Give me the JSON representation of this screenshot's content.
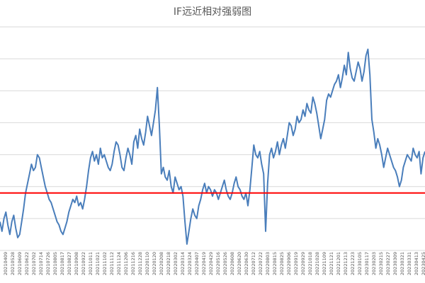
{
  "chart_data": {
    "type": "line",
    "title": "IF远近相对强弱图",
    "xlabel": "",
    "ylabel": "",
    "ylim": [
      0,
      7
    ],
    "grid": true,
    "legend": "none",
    "colors": {
      "series": "#4a7ebb",
      "reference": "#ff0000",
      "grid": "#d9d9d9",
      "title": "#595959"
    },
    "reference_line": {
      "value": 1.8
    },
    "x_tick_labels": [
      "20210409",
      "20210528",
      "20210609",
      "20210622",
      "20210702",
      "20210714",
      "20210726",
      "20210805",
      "20210817",
      "20210827",
      "20210908",
      "20210922",
      "20211011",
      "20211021",
      "20211102",
      "20211112",
      "20211124",
      "20211206",
      "20211216",
      "20211228",
      "20220110",
      "20220120",
      "20220208",
      "20220218",
      "20220302",
      "20220314",
      "20220324",
      "20220407",
      "20220419",
      "20220429",
      "20220516",
      "20220526",
      "20220608",
      "20220620",
      "20220630",
      "20220712",
      "20220722",
      "20220803",
      "20220815",
      "20220825",
      "20220906",
      "20220919",
      "20220929",
      "20221018",
      "20221028",
      "20221109",
      "20221121",
      "20221201",
      "20221213",
      "20221223",
      "20230105",
      "20230117",
      "20230203",
      "20230215",
      "20230227",
      "20230309",
      "20230321",
      "20230331",
      "20230413",
      "20230425"
    ],
    "series": [
      {
        "values": [
          0.9,
          0.6,
          1.0,
          1.2,
          0.8,
          0.5,
          0.9,
          1.1,
          0.7,
          0.4,
          0.5,
          0.9,
          1.3,
          1.8,
          2.1,
          2.4,
          2.7,
          2.5,
          2.6,
          3.0,
          2.9,
          2.6,
          2.3,
          2.0,
          1.8,
          1.6,
          1.5,
          1.3,
          1.1,
          0.9,
          0.8,
          0.6,
          0.5,
          0.7,
          0.9,
          1.2,
          1.4,
          1.6,
          1.5,
          1.7,
          1.4,
          1.5,
          1.3,
          1.6,
          2.0,
          2.5,
          2.9,
          3.1,
          2.8,
          3.0,
          2.7,
          3.2,
          2.9,
          3.0,
          2.8,
          2.6,
          2.5,
          2.7,
          3.1,
          3.4,
          3.3,
          3.0,
          2.6,
          2.5,
          2.9,
          3.2,
          3.0,
          2.7,
          3.4,
          3.6,
          3.2,
          3.8,
          3.5,
          3.3,
          3.7,
          4.2,
          3.9,
          3.6,
          4.0,
          4.4,
          5.1,
          3.9,
          2.4,
          2.6,
          2.3,
          2.2,
          2.5,
          2.0,
          1.8,
          2.3,
          2.1,
          1.9,
          2.0,
          1.7,
          0.9,
          0.2,
          0.6,
          1.0,
          1.3,
          1.1,
          1.0,
          1.4,
          1.6,
          1.9,
          2.1,
          1.8,
          2.0,
          1.9,
          1.7,
          1.9,
          1.8,
          1.6,
          1.8,
          2.0,
          2.2,
          1.9,
          1.7,
          1.6,
          1.8,
          2.1,
          2.3,
          2.0,
          1.9,
          1.7,
          1.6,
          1.8,
          1.4,
          1.9,
          2.6,
          3.3,
          3.0,
          2.9,
          3.1,
          2.7,
          2.4,
          0.6,
          2.1,
          3.0,
          3.2,
          2.9,
          3.1,
          3.4,
          3.0,
          3.3,
          3.5,
          3.2,
          3.6,
          4.0,
          3.9,
          3.6,
          3.8,
          4.2,
          4.0,
          4.1,
          4.4,
          4.2,
          4.6,
          4.4,
          4.3,
          4.8,
          4.6,
          4.3,
          3.9,
          3.5,
          3.8,
          4.1,
          4.7,
          4.9,
          4.8,
          5.0,
          5.2,
          5.3,
          5.5,
          5.1,
          5.4,
          5.8,
          5.5,
          6.2,
          5.7,
          5.4,
          5.3,
          5.6,
          5.9,
          5.7,
          5.3,
          5.6,
          6.1,
          6.3,
          5.5,
          4.1,
          3.7,
          3.2,
          3.5,
          3.3,
          3.0,
          2.6,
          2.9,
          3.2,
          3.0,
          2.8,
          2.6,
          2.5,
          2.3,
          2.0,
          2.2,
          2.6,
          2.8,
          3.0,
          2.9,
          2.8,
          3.2,
          3.0,
          2.9,
          3.1,
          2.4,
          2.9,
          3.1
        ]
      }
    ]
  }
}
